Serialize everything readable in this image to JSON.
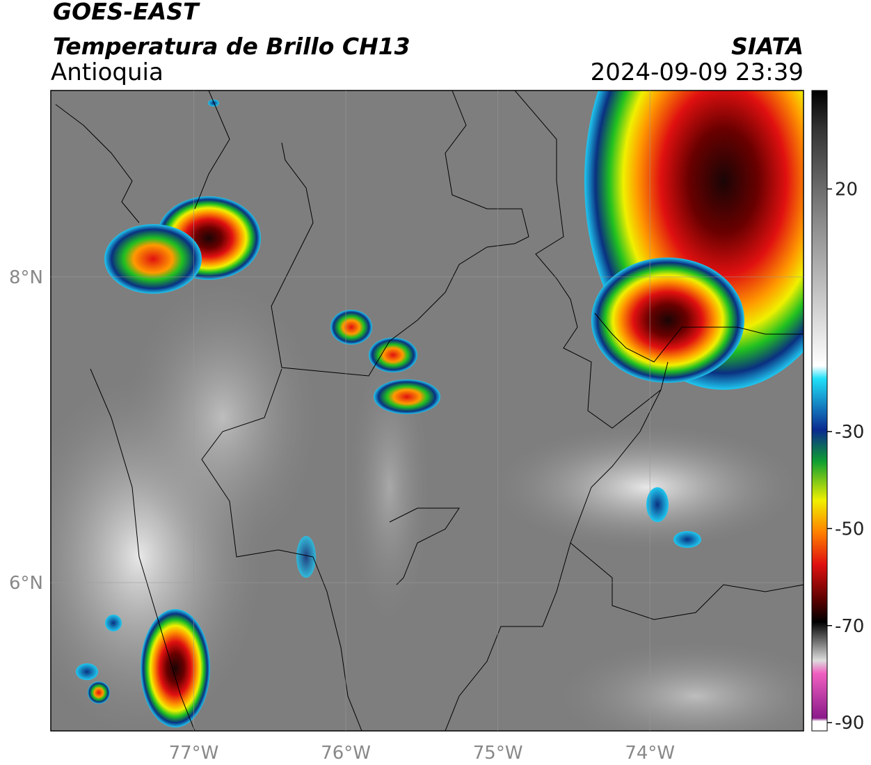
{
  "header": {
    "title": "GOES-EAST",
    "subtitle": "Temperatura de Brillo CH13",
    "region": "Antioquia",
    "source": "SIATA",
    "timestamp": "2024-09-09 23:39"
  },
  "map": {
    "lonlim": [
      -77.94,
      -72.99
    ],
    "latlim": [
      5.03,
      9.22
    ],
    "lon_ticks": [
      {
        "value": -77,
        "label": "77°W"
      },
      {
        "value": -76,
        "label": "76°W"
      },
      {
        "value": -75,
        "label": "75°W"
      },
      {
        "value": -74,
        "label": "74°W"
      }
    ],
    "lat_ticks": [
      {
        "value": 8,
        "label": "8°N"
      },
      {
        "value": 6,
        "label": "6°N"
      }
    ]
  },
  "colorbar": {
    "lim": [
      -91.7,
      40.3
    ],
    "ticks": [
      20,
      -30,
      -50,
      -70,
      -90
    ]
  }
}
